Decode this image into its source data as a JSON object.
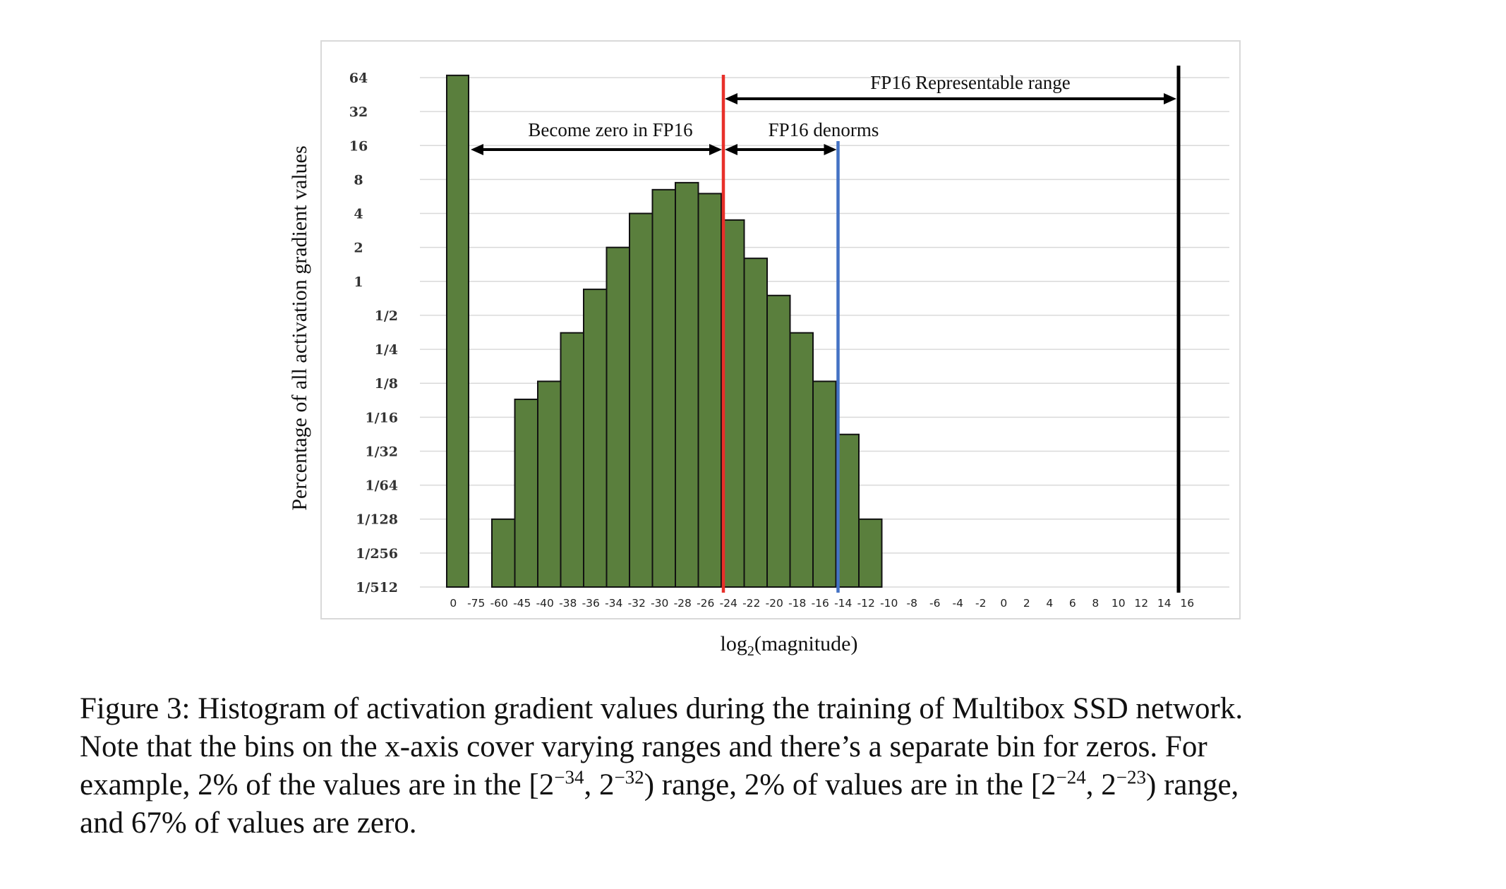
{
  "chart_data": {
    "type": "bar",
    "xlabel_main": "log",
    "xlabel_sub": "2",
    "xlabel_rest": "(magnitude)",
    "ylabel": "Percentage of all activation gradient values",
    "y_scale": "log2",
    "y_ticks": [
      {
        "label": "64",
        "value": 64
      },
      {
        "label": "32",
        "value": 32
      },
      {
        "label": "16",
        "value": 16
      },
      {
        "label": "8",
        "value": 8
      },
      {
        "label": "4",
        "value": 4
      },
      {
        "label": "2",
        "value": 2
      },
      {
        "label": "1",
        "value": 1
      },
      {
        "label": "1/2",
        "value": 0.5
      },
      {
        "label": "1/4",
        "value": 0.25
      },
      {
        "label": "1/8",
        "value": 0.125
      },
      {
        "label": "1/16",
        "value": 0.0625
      },
      {
        "label": "1/32",
        "value": 0.03125
      },
      {
        "label": "1/64",
        "value": 0.015625
      },
      {
        "label": "1/128",
        "value": 0.0078125
      },
      {
        "label": "1/256",
        "value": 0.00390625
      },
      {
        "label": "1/512",
        "value": 0.001953125
      }
    ],
    "ylim": [
      0.001953125,
      64
    ],
    "categories": [
      "0",
      "-75",
      "-60",
      "-45",
      "-40",
      "-38",
      "-36",
      "-34",
      "-32",
      "-30",
      "-28",
      "-26",
      "-24",
      "-22",
      "-20",
      "-18",
      "-16",
      "-14",
      "-12",
      "-10",
      "-8",
      "-6",
      "-4",
      "-2",
      "0",
      "2",
      "4",
      "6",
      "8",
      "10",
      "12",
      "14",
      "16"
    ],
    "values": [
      67,
      null,
      0.0078,
      0.09,
      0.13,
      0.35,
      0.85,
      2.0,
      4.0,
      6.5,
      7.5,
      6.0,
      3.5,
      1.6,
      0.75,
      0.35,
      0.13,
      0.044,
      0.0078,
      null,
      null,
      null,
      null,
      null,
      null,
      null,
      null,
      null,
      null,
      null,
      null,
      null,
      null
    ],
    "bar_color": "#5a7f3d",
    "annotations": [
      {
        "text": "Become zero in FP16"
      },
      {
        "text": "FP16 denorms"
      },
      {
        "text": "FP16 Representable range"
      }
    ],
    "markers": [
      {
        "at": "-24",
        "color": "#e8302a"
      },
      {
        "at": "-14",
        "color": "#4472c4"
      },
      {
        "at": "15",
        "color": "#000000"
      }
    ],
    "grid": true
  },
  "caption": {
    "line1": "Figure 3: Histogram of activation gradient values during the training of Multibox SSD network.",
    "line2": "Note that the bins on the x-axis cover varying ranges and there’s a separate bin for zeros.  For",
    "line3_a": "example, 2% of the values are in the [2",
    "line3_exp1": "−34",
    "line3_b": ", 2",
    "line3_exp2": "−32",
    "line3_c": ") range, 2% of values are in the [2",
    "line3_exp3": "−24",
    "line3_d": ", 2",
    "line3_exp4": "−23",
    "line3_e": ") range,",
    "line4": "and 67% of values are zero."
  }
}
